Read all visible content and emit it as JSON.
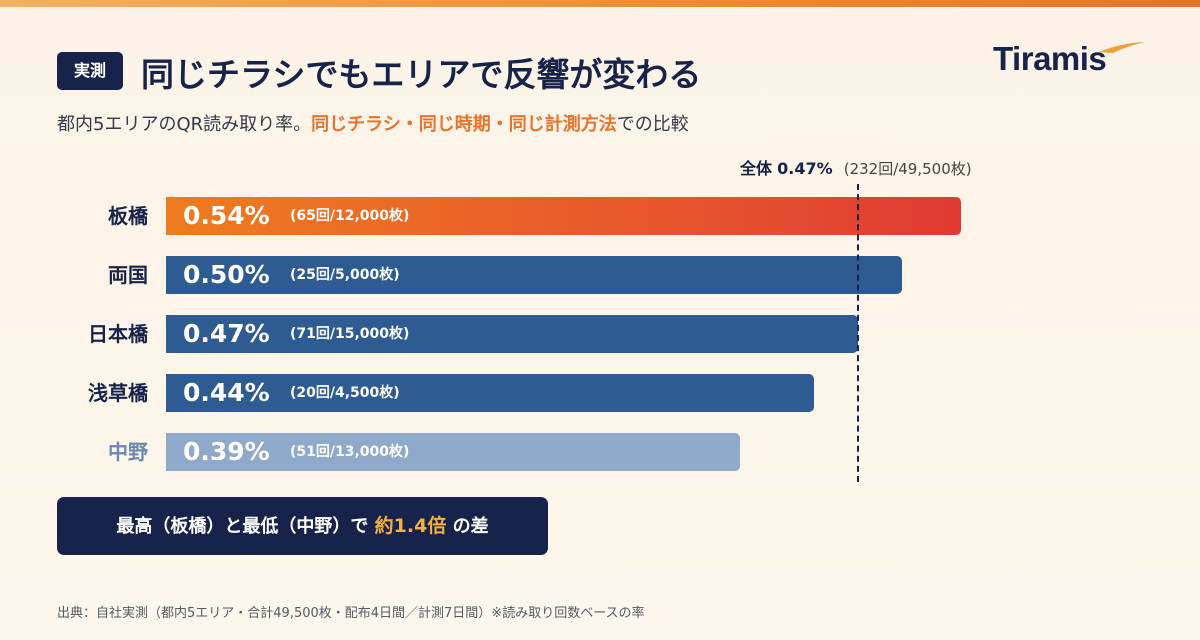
{
  "header": {
    "badge": "実測",
    "title": "同じチラシでもエリアで反響が変わる",
    "logo": "Tiramis"
  },
  "subtitle": {
    "prefix": "都内5エリアのQR読み取り率。",
    "highlight": "同じチラシ・同じ時期・同じ計測方法",
    "suffix": "での比較"
  },
  "total": {
    "label": "全体",
    "value": "0.47%",
    "counts": "(232回/49,500枚)"
  },
  "chart_data": {
    "type": "bar",
    "orientation": "horizontal",
    "categories": [
      "板橋",
      "両国",
      "日本橋",
      "浅草橋",
      "中野"
    ],
    "values": [
      0.54,
      0.5,
      0.47,
      0.44,
      0.39
    ],
    "value_labels": [
      "0.54%",
      "0.50%",
      "0.47%",
      "0.44%",
      "0.39%"
    ],
    "count_labels": [
      "(65回/12,000枚)",
      "(25回/5,000枚)",
      "(71回/15,000枚)",
      "(20回/4,500枚)",
      "(51回/13,000枚)"
    ],
    "colors": [
      "orange-red-gradient",
      "#2e5b92",
      "#2e5b92",
      "#2e5b92",
      "#8fa9cb"
    ],
    "label_colors": [
      "#17234a",
      "#17234a",
      "#17234a",
      "#17234a",
      "#6a86b3"
    ],
    "reference_line": {
      "value": 0.47
    },
    "xlim": [
      0,
      0.587
    ]
  },
  "callout": {
    "prefix": "最高（板橋）と最低（中野）で ",
    "highlight": "約1.4倍",
    "suffix": " の差"
  },
  "source": "出典：自社実測（都内5エリア・合計49,500枚・配布4日間／計測7日間）※読み取り回数ベースの率",
  "colors": {
    "navy": "#17234a",
    "bar_blue": "#2e5b92",
    "bar_light": "#8fa9cb",
    "accent_orange": "#e8732a",
    "gold": "#f6b13d"
  }
}
